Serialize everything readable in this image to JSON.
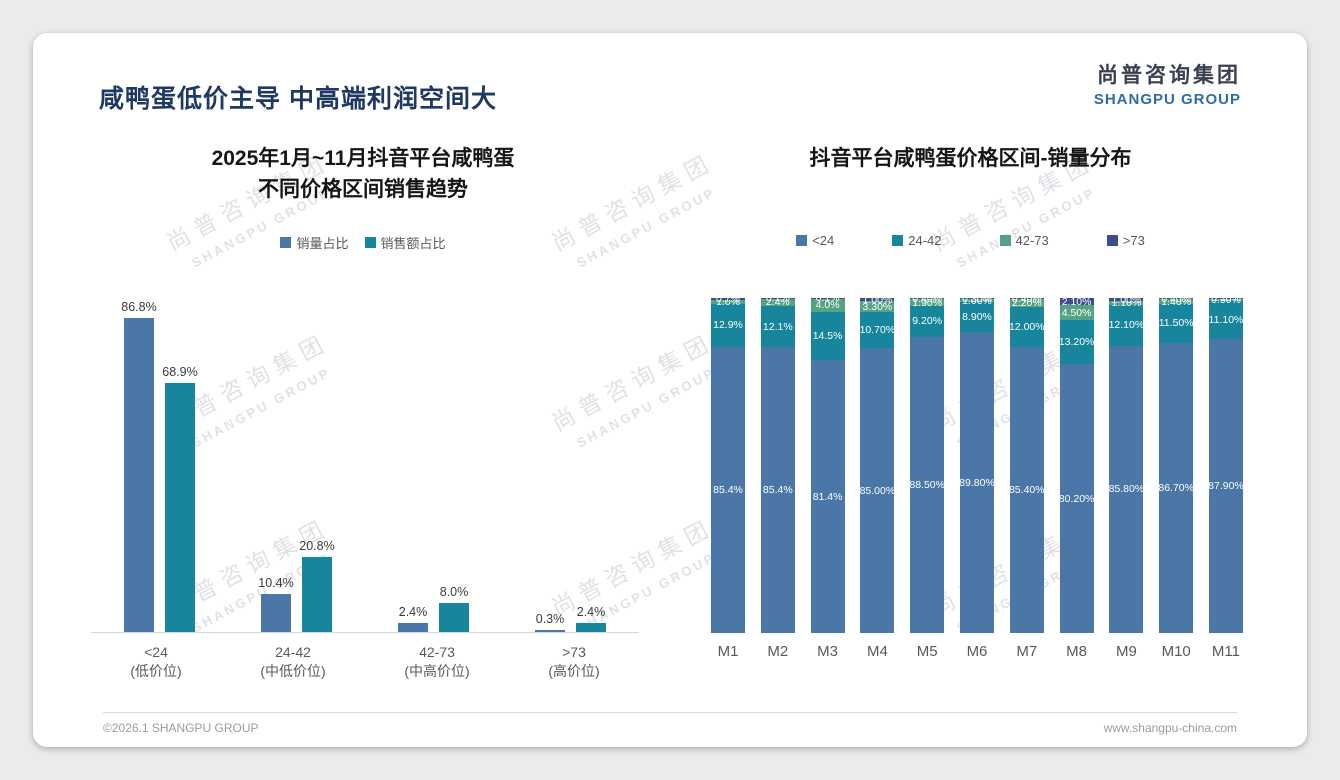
{
  "page_title": "咸鸭蛋低价主导 中高端利润空间大",
  "logo": {
    "cn": "尚普咨询集团",
    "en": "SHANGPU GROUP"
  },
  "watermark": {
    "cn": "尚普咨询集团",
    "en": "SHANGPU GROUP"
  },
  "footer": {
    "left": "©2026.1 SHANGPU GROUP",
    "right": "www.shangpu-china.com"
  },
  "colors": {
    "title_navy": "#1f3864",
    "blue": "#4a77a8",
    "teal": "#17859b",
    "green": "#54a383",
    "navy": "#3e4c8e"
  },
  "chart_data": [
    {
      "type": "bar",
      "title": "2025年1月~11月抖音平台咸鸭蛋 不同价格区间销售趋势",
      "title_lines": [
        "2025年1月~11月抖音平台咸鸭蛋",
        "不同价格区间销售趋势"
      ],
      "categories": [
        "<24",
        "24-42",
        "42-73",
        ">73"
      ],
      "category_sublabels": [
        "(低价位)",
        "(中低价位)",
        "(中高价位)",
        "(高价位)"
      ],
      "series": [
        {
          "name": "销量占比",
          "color": "#4a77a8",
          "values": [
            86.8,
            10.4,
            2.4,
            0.3
          ]
        },
        {
          "name": "销售额占比",
          "color": "#17859b",
          "values": [
            68.9,
            20.8,
            8.0,
            2.4
          ]
        }
      ],
      "value_label_suffix": "%",
      "ylim": [
        0,
        100
      ],
      "legend_position": "top",
      "grid": false
    },
    {
      "type": "bar",
      "subtype": "stacked-percent",
      "title": "抖音平台咸鸭蛋价格区间-销量分布",
      "categories": [
        "M1",
        "M2",
        "M3",
        "M4",
        "M5",
        "M6",
        "M7",
        "M8",
        "M9",
        "M10",
        "M11"
      ],
      "series": [
        {
          "name": "<24",
          "color": "#4a77a8",
          "values": [
            85.4,
            85.4,
            81.4,
            85.0,
            88.5,
            89.8,
            85.4,
            80.2,
            85.8,
            86.7,
            87.9
          ]
        },
        {
          "name": "24-42",
          "color": "#17859b",
          "values": [
            12.9,
            12.1,
            14.5,
            10.7,
            9.2,
            8.9,
            12.0,
            13.2,
            12.1,
            11.5,
            11.1
          ]
        },
        {
          "name": "42-73",
          "color": "#54a383",
          "values": [
            1.0,
            2.4,
            4.0,
            3.3,
            1.9,
            1.0,
            2.2,
            4.5,
            1.1,
            1.4,
            0.9
          ]
        },
        {
          "name": ">73",
          "color": "#3e4c8e",
          "values": [
            0.7,
            0.1,
            0.1,
            1.0,
            0.4,
            0.3,
            0.4,
            2.1,
            1.0,
            0.4,
            0.1
          ]
        }
      ],
      "label_decimals": [
        1,
        1,
        1,
        2,
        2,
        2,
        2,
        2,
        2,
        2,
        2
      ],
      "value_label_suffix": "%",
      "ylim": [
        0,
        100
      ],
      "legend_position": "top",
      "grid": false
    }
  ]
}
